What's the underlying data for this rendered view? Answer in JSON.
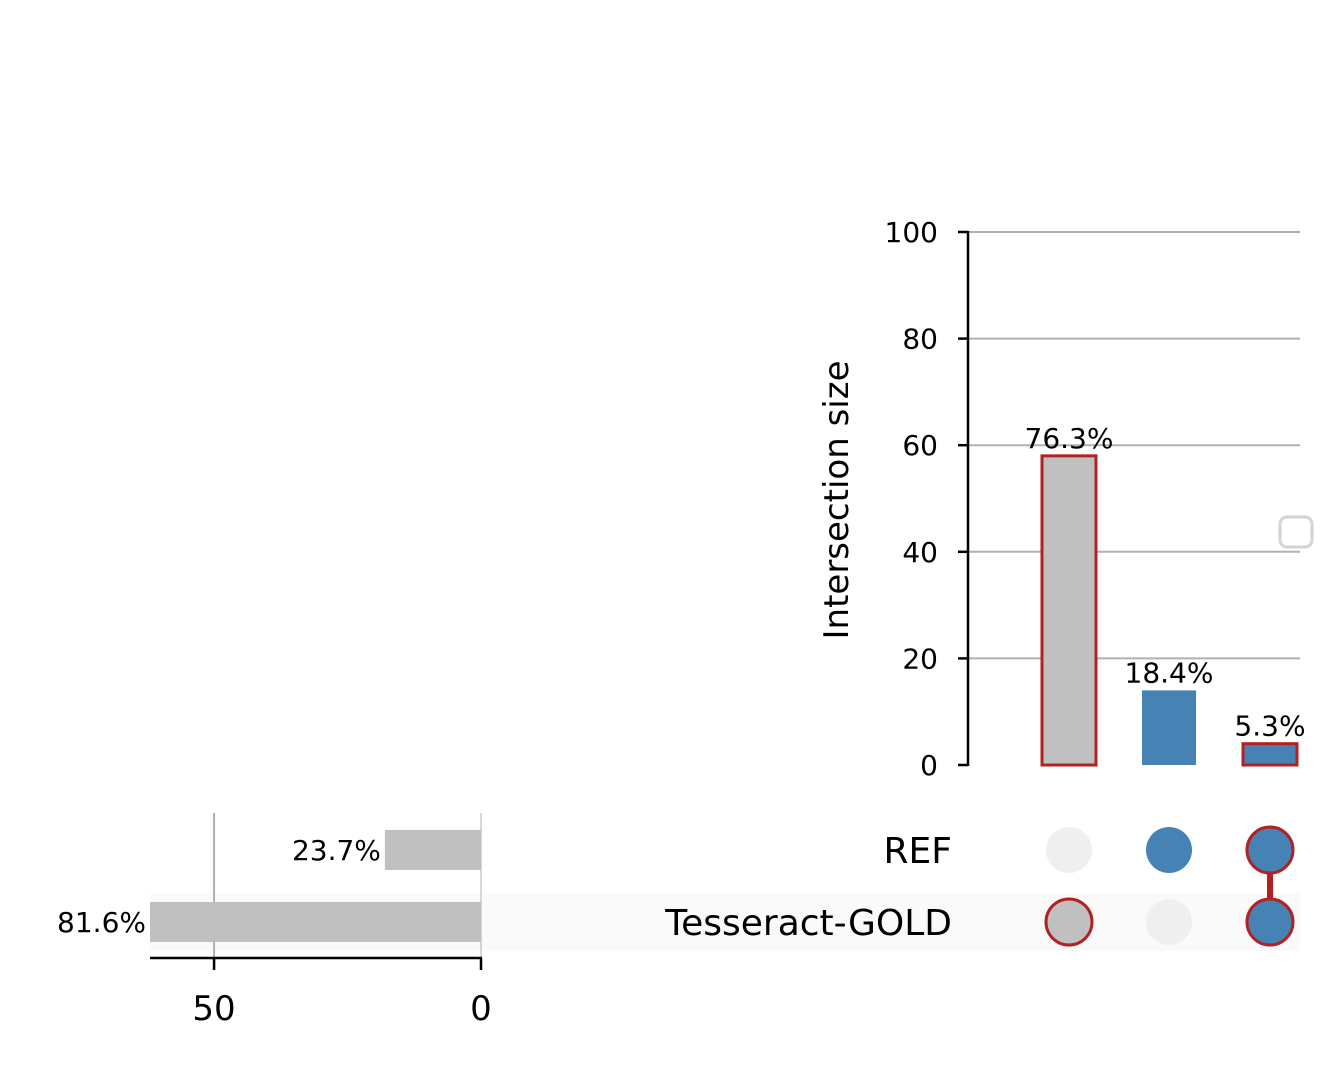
{
  "chart_data": {
    "type": "upset",
    "intersections": {
      "ylabel": "Intersection size",
      "ylim": [
        0,
        100
      ],
      "yticks": [
        0,
        20,
        40,
        60,
        80,
        100
      ],
      "grid": true,
      "bars": [
        {
          "sets": [
            "Tesseract-GOLD"
          ],
          "value": 58,
          "label": "76.3%",
          "color": "#c0c0c0",
          "highlight": true
        },
        {
          "sets": [
            "REF"
          ],
          "value": 14,
          "label": "18.4%",
          "color": "#4682b4",
          "highlight": false
        },
        {
          "sets": [
            "REF",
            "Tesseract-GOLD"
          ],
          "value": 4,
          "label": "5.3%",
          "color": "#4682b4",
          "highlight": true
        }
      ]
    },
    "sets": [
      {
        "name": "REF",
        "size": 18,
        "label": "23.7%"
      },
      {
        "name": "Tesseract-GOLD",
        "size": 62,
        "label": "81.6%"
      }
    ],
    "set_size_axis": {
      "ticks": [
        50,
        0
      ],
      "xlim": [
        62,
        0
      ]
    },
    "colors": {
      "default_bar": "#c0c0c0",
      "selected": "#4682b4",
      "highlight_edge": "#b22222",
      "inactive_dot": "#efefef",
      "grid": "#b0b0b0",
      "row_shade": "#fafafa"
    }
  }
}
